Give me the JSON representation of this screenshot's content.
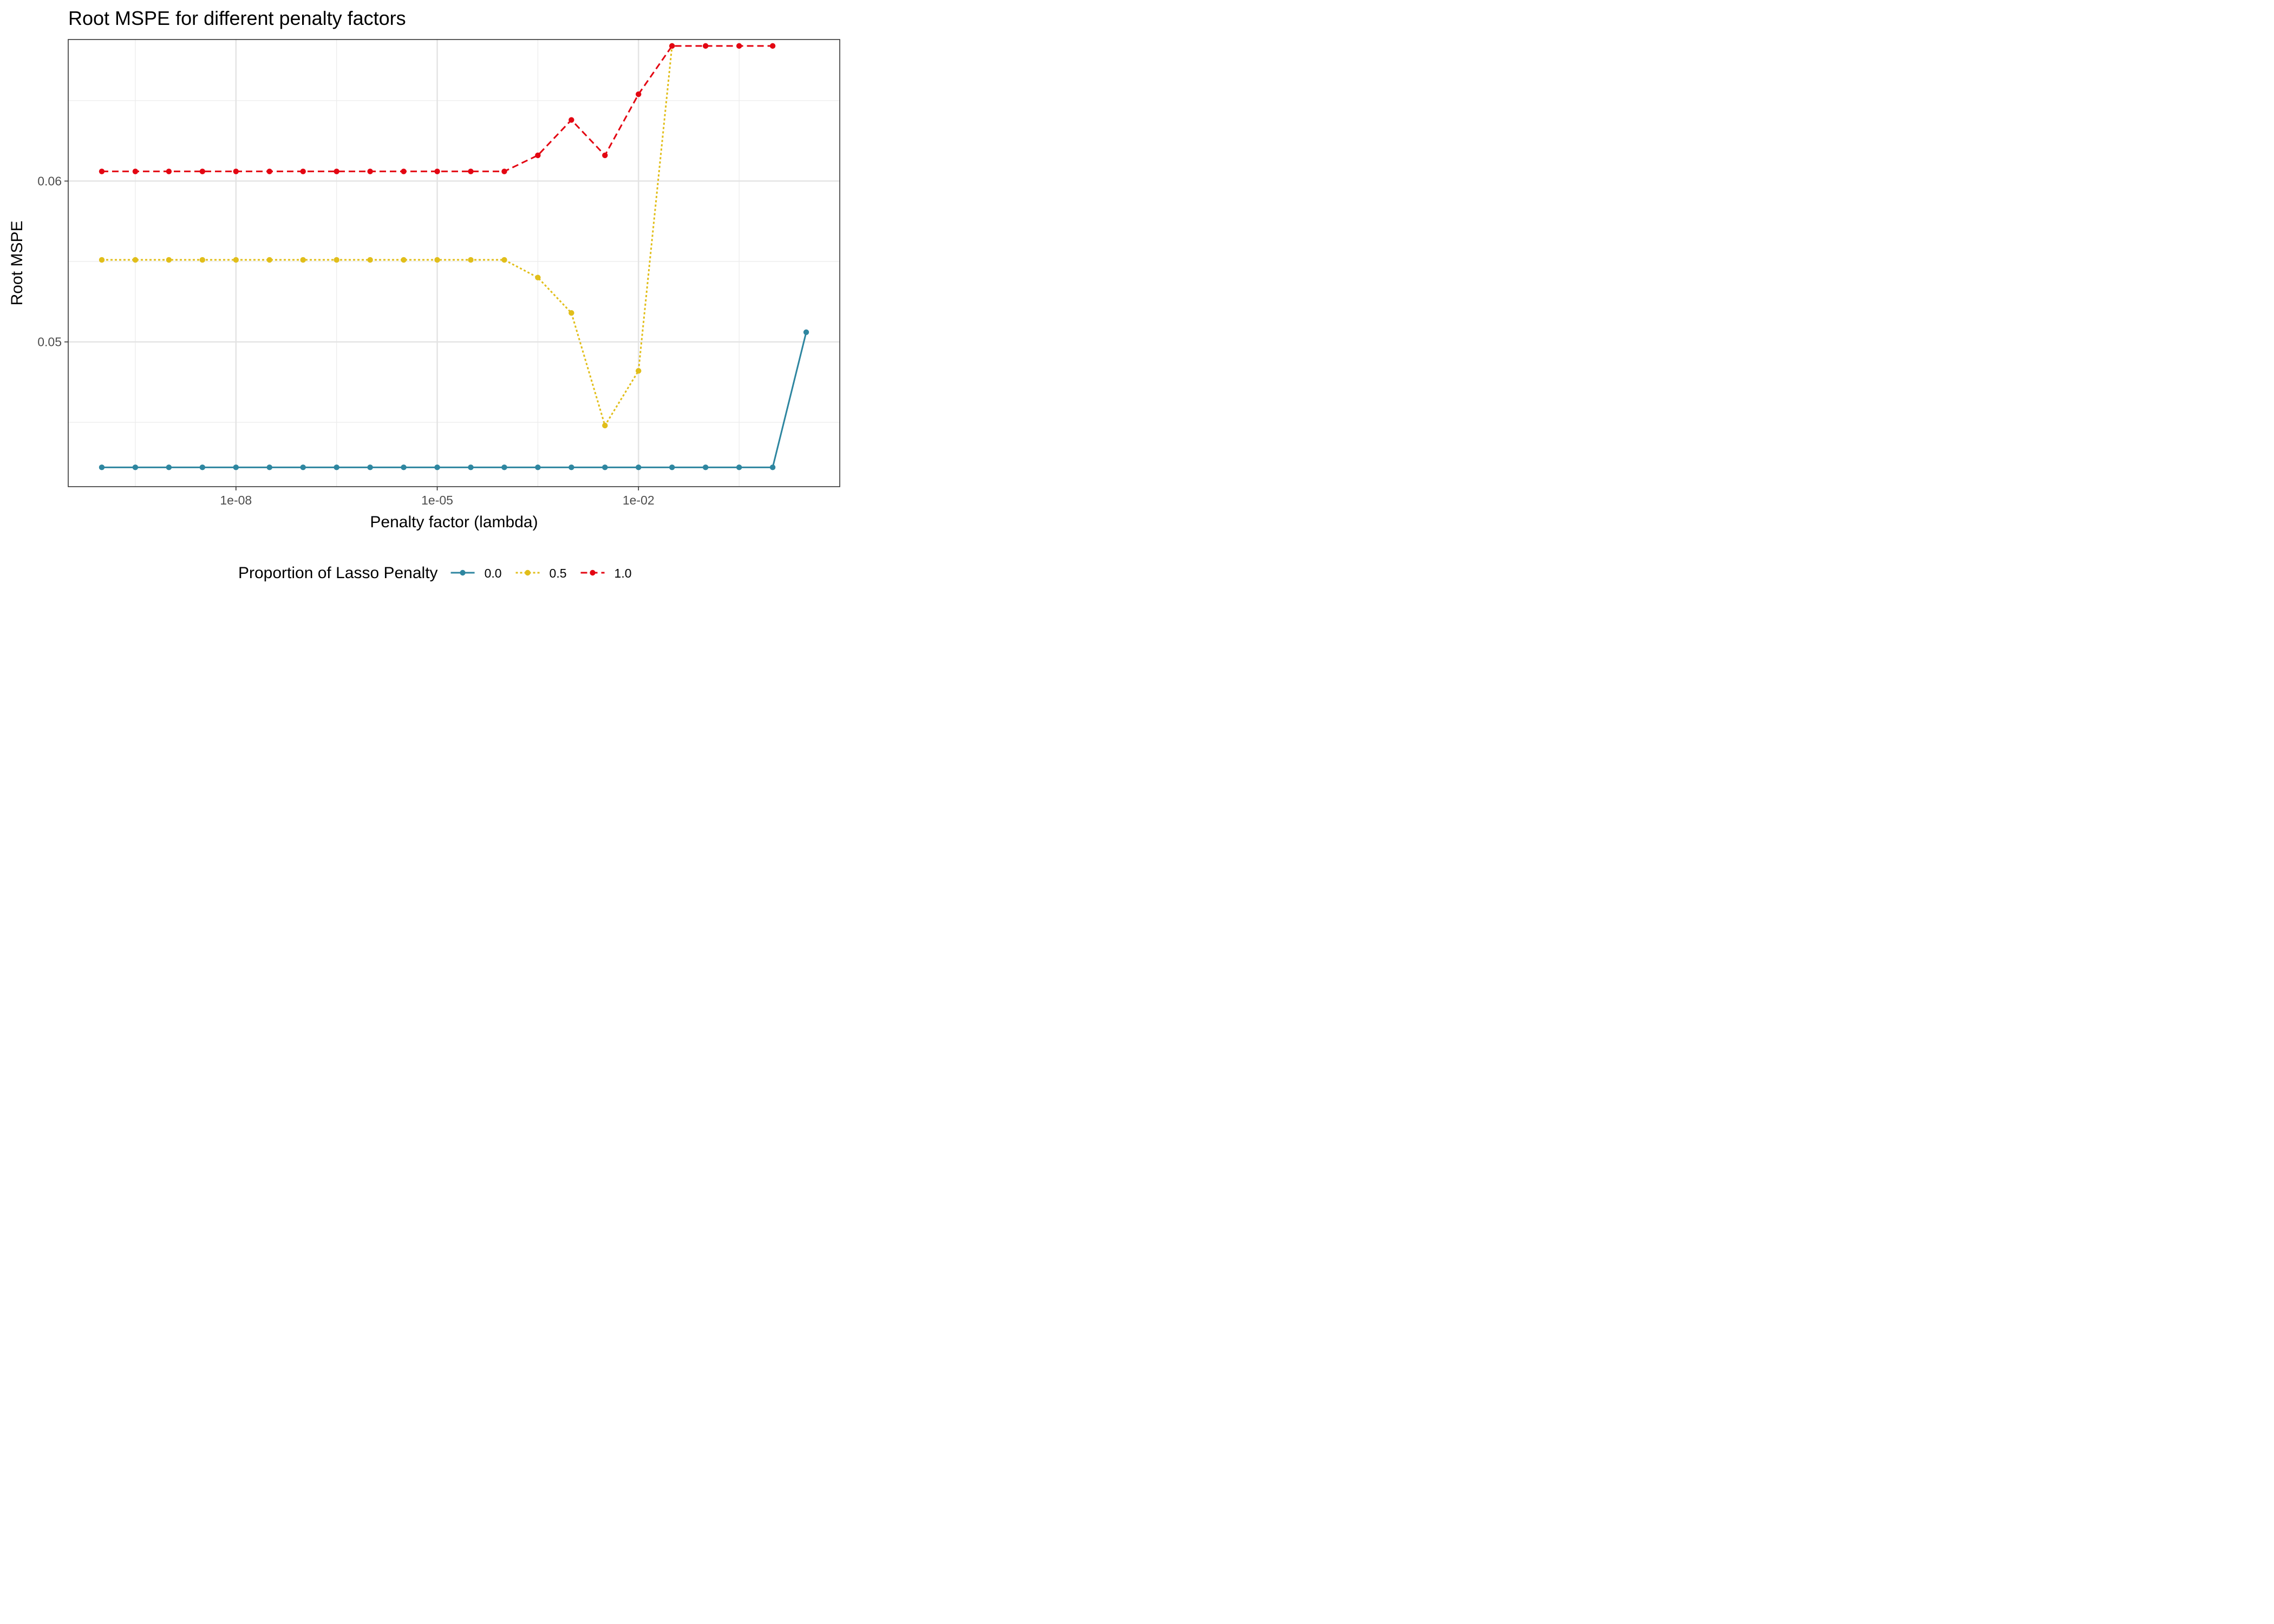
{
  "chart_data": {
    "type": "line",
    "title": "Root MSPE for different penalty factors",
    "xlabel": "Penalty factor (lambda)",
    "ylabel": "Root MSPE",
    "x_scale": "log10",
    "x": [
      1e-10,
      3.162e-10,
      1e-09,
      3.162e-09,
      1e-08,
      3.162e-08,
      1e-07,
      3.162e-07,
      1e-06,
      3.162e-06,
      1e-05,
      3.162e-05,
      0.0001,
      0.0003162,
      0.001,
      0.003162,
      0.01,
      0.03162,
      0.1,
      0.3162,
      1,
      3.162
    ],
    "xlim": [
      3.16e-11,
      10.0
    ],
    "ylim": [
      0.041,
      0.0688
    ],
    "x_ticks": [
      {
        "value": 1e-08,
        "label": "1e-08"
      },
      {
        "value": 1e-05,
        "label": "1e-05"
      },
      {
        "value": 0.01,
        "label": "1e-02"
      }
    ],
    "y_ticks": [
      {
        "value": 0.05,
        "label": "0.05"
      },
      {
        "value": 0.06,
        "label": "0.06"
      }
    ],
    "grid": true,
    "legend_title": "Proportion of Lasso Penalty",
    "legend_position": "bottom",
    "series": [
      {
        "name": "0.0",
        "color": "#2E86A0",
        "linestyle": "solid",
        "points": [
          [
            1e-10,
            0.0422
          ],
          [
            3.162e-10,
            0.0422
          ],
          [
            1e-09,
            0.0422
          ],
          [
            3.162e-09,
            0.0422
          ],
          [
            1e-08,
            0.0422
          ],
          [
            3.162e-08,
            0.0422
          ],
          [
            1e-07,
            0.0422
          ],
          [
            3.162e-07,
            0.0422
          ],
          [
            1e-06,
            0.0422
          ],
          [
            3.162e-06,
            0.0422
          ],
          [
            1e-05,
            0.0422
          ],
          [
            3.162e-05,
            0.0422
          ],
          [
            0.0001,
            0.0422
          ],
          [
            0.0003162,
            0.0422
          ],
          [
            0.001,
            0.0422
          ],
          [
            0.003162,
            0.0422
          ],
          [
            0.01,
            0.0422
          ],
          [
            0.03162,
            0.0422
          ],
          [
            0.1,
            0.0422
          ],
          [
            0.3162,
            0.0422
          ],
          [
            1,
            0.0422
          ],
          [
            3.162,
            0.0506
          ]
        ]
      },
      {
        "name": "0.5",
        "color": "#E1BE1A",
        "linestyle": "dotted",
        "points": [
          [
            1e-10,
            0.0551
          ],
          [
            3.162e-10,
            0.0551
          ],
          [
            1e-09,
            0.0551
          ],
          [
            3.162e-09,
            0.0551
          ],
          [
            1e-08,
            0.0551
          ],
          [
            3.162e-08,
            0.0551
          ],
          [
            1e-07,
            0.0551
          ],
          [
            3.162e-07,
            0.0551
          ],
          [
            1e-06,
            0.0551
          ],
          [
            3.162e-06,
            0.0551
          ],
          [
            1e-05,
            0.0551
          ],
          [
            3.162e-05,
            0.0551
          ],
          [
            0.0001,
            0.0551
          ],
          [
            0.0003162,
            0.054
          ],
          [
            0.001,
            0.0518
          ],
          [
            0.003162,
            0.0448
          ],
          [
            0.01,
            0.0482
          ],
          [
            0.03162,
            0.0684
          ]
        ]
      },
      {
        "name": "1.0",
        "color": "#E30512",
        "linestyle": "dashed",
        "points": [
          [
            1e-10,
            0.0606
          ],
          [
            3.162e-10,
            0.0606
          ],
          [
            1e-09,
            0.0606
          ],
          [
            3.162e-09,
            0.0606
          ],
          [
            1e-08,
            0.0606
          ],
          [
            3.162e-08,
            0.0606
          ],
          [
            1e-07,
            0.0606
          ],
          [
            3.162e-07,
            0.0606
          ],
          [
            1e-06,
            0.0606
          ],
          [
            3.162e-06,
            0.0606
          ],
          [
            1e-05,
            0.0606
          ],
          [
            3.162e-05,
            0.0606
          ],
          [
            0.0001,
            0.0606
          ],
          [
            0.0003162,
            0.0616
          ],
          [
            0.001,
            0.0638
          ],
          [
            0.003162,
            0.0616
          ],
          [
            0.01,
            0.0654
          ],
          [
            0.03162,
            0.0684
          ],
          [
            0.1,
            0.0684
          ],
          [
            0.3162,
            0.0684
          ],
          [
            1,
            0.0684
          ]
        ]
      }
    ]
  }
}
